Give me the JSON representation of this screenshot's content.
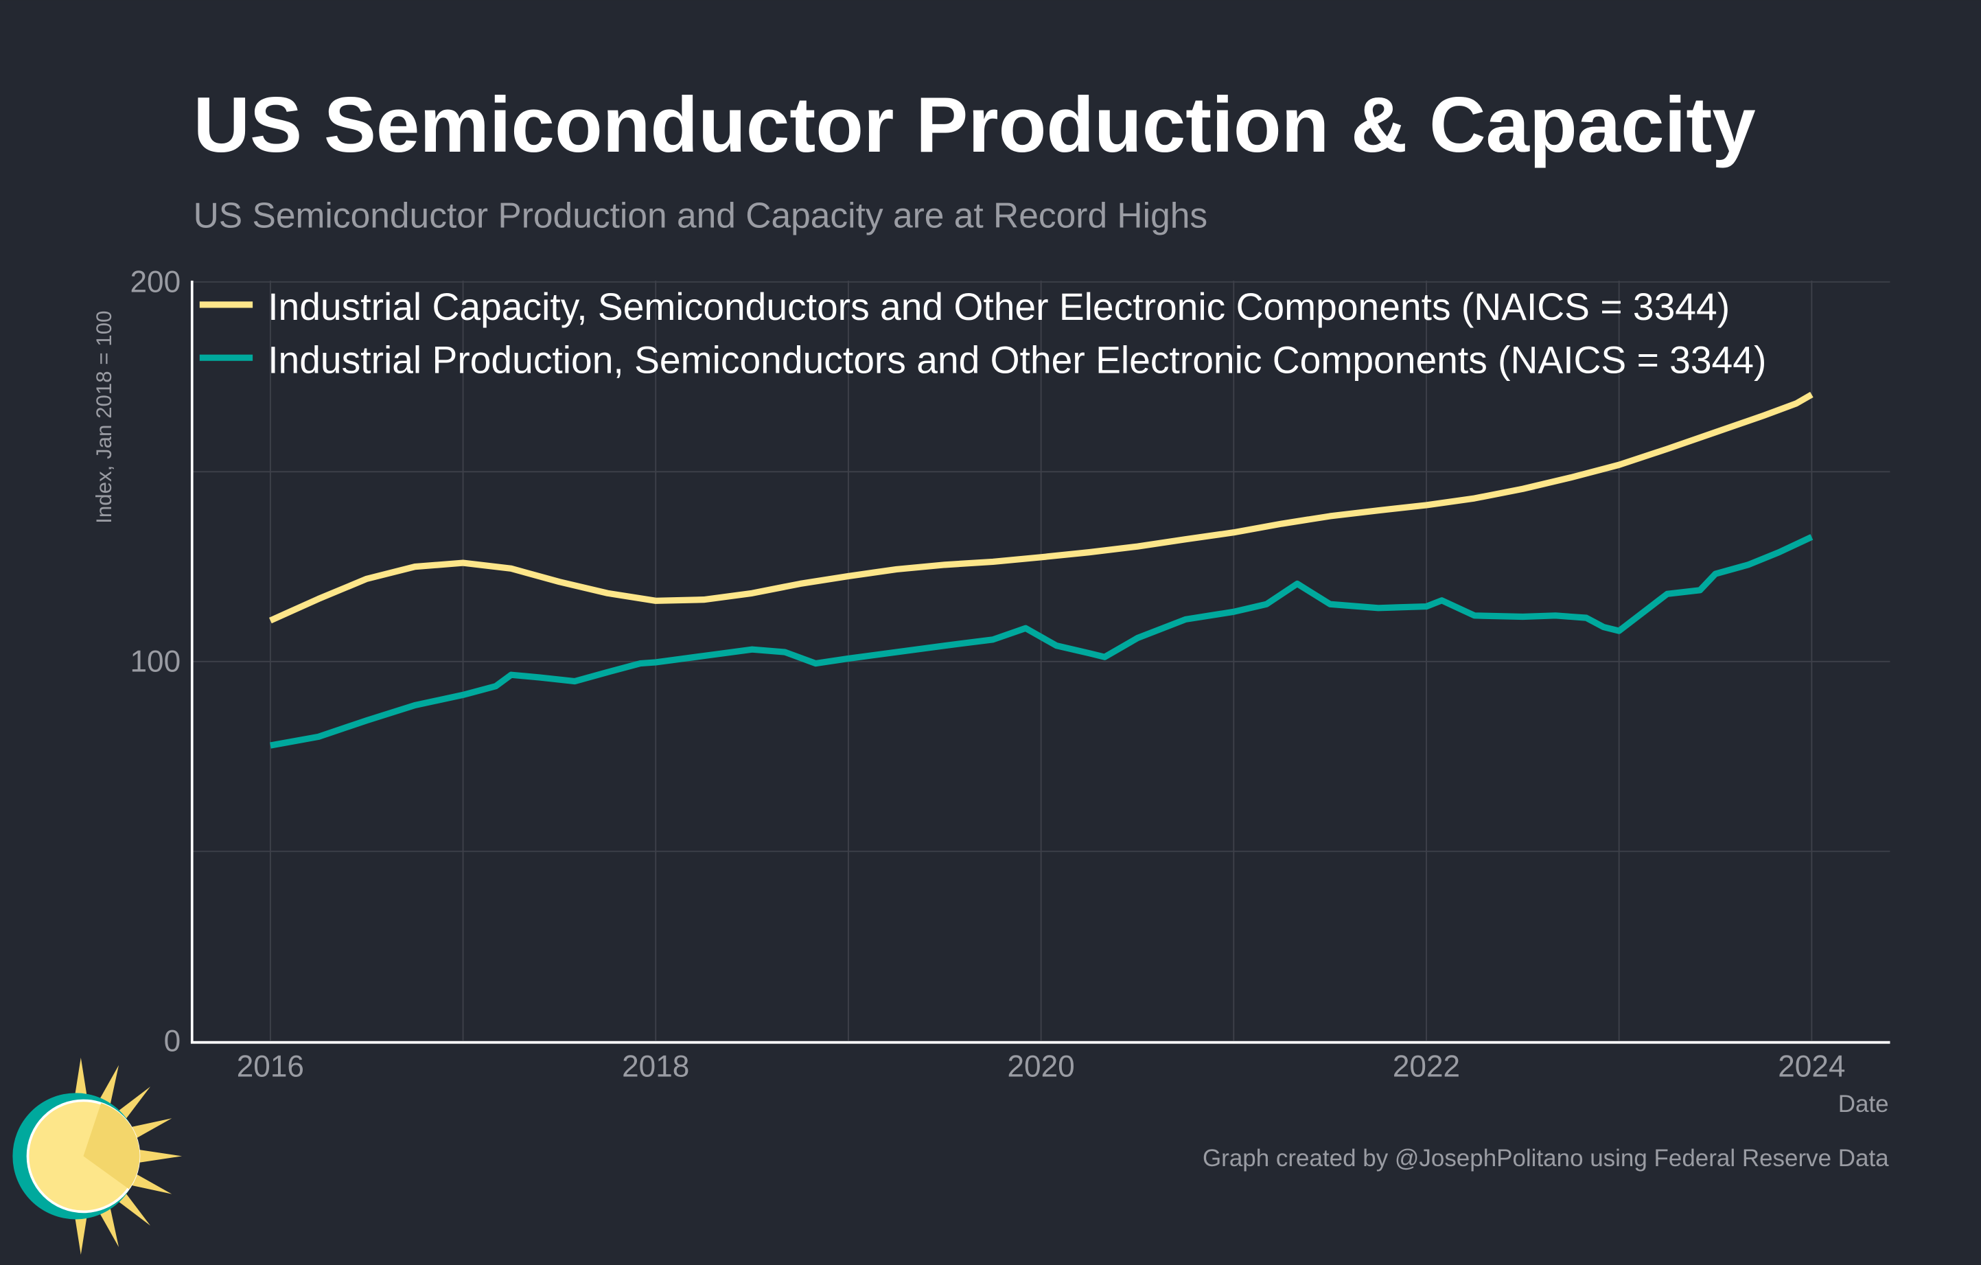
{
  "chart_data": {
    "type": "line",
    "title": "US Semiconductor Production & Capacity",
    "subtitle": "US Semiconductor Production and Capacity are at Record Highs",
    "xlabel": "Date",
    "ylabel": "Index, Jan 2018 = 100",
    "xlim": [
      2015.6,
      2024.4
    ],
    "ylim": [
      0,
      200
    ],
    "x_ticks": [
      "2016",
      "2018",
      "2020",
      "2022",
      "2024"
    ],
    "y_ticks": [
      "0",
      "100",
      "200"
    ],
    "grid": true,
    "legend_position": "top-left",
    "footer": "Graph created by @JosephPolitano using Federal Reserve Data",
    "colors": {
      "background": "#242831",
      "capacity": "#fde68a",
      "production": "#00a99d",
      "grid": "#3e414a"
    },
    "series": [
      {
        "name": "Industrial Capacity, Semiconductors and Other Electronic Components (NAICS = 3344)",
        "x": [
          2016.0,
          2016.25,
          2016.5,
          2016.75,
          2017.0,
          2017.25,
          2017.5,
          2017.75,
          2018.0,
          2018.25,
          2018.5,
          2018.75,
          2019.0,
          2019.25,
          2019.5,
          2019.75,
          2020.0,
          2020.25,
          2020.5,
          2020.75,
          2021.0,
          2021.25,
          2021.5,
          2021.75,
          2022.0,
          2022.25,
          2022.5,
          2022.75,
          2023.0,
          2023.25,
          2023.5,
          2023.75,
          2023.92,
          2024.0
        ],
        "values": [
          110.8,
          116.5,
          121.8,
          125.0,
          126.0,
          124.5,
          121.0,
          118.0,
          116.0,
          116.3,
          118.0,
          120.5,
          122.5,
          124.3,
          125.5,
          126.3,
          127.5,
          128.8,
          130.3,
          132.2,
          134.0,
          136.3,
          138.3,
          139.8,
          141.2,
          143.0,
          145.5,
          148.5,
          151.8,
          156.0,
          160.4,
          164.8,
          168.0,
          170.3
        ]
      },
      {
        "name": "Industrial Production, Semiconductors and Other Electronic Components (NAICS = 3344)",
        "x": [
          2016.0,
          2016.25,
          2016.5,
          2016.75,
          2017.0,
          2017.17,
          2017.25,
          2017.4,
          2017.58,
          2017.75,
          2017.92,
          2018.0,
          2018.25,
          2018.5,
          2018.67,
          2018.83,
          2019.0,
          2019.25,
          2019.5,
          2019.75,
          2019.92,
          2020.08,
          2020.25,
          2020.33,
          2020.5,
          2020.75,
          2021.0,
          2021.17,
          2021.33,
          2021.5,
          2021.75,
          2022.0,
          2022.08,
          2022.25,
          2022.5,
          2022.67,
          2022.83,
          2022.92,
          2023.0,
          2023.25,
          2023.42,
          2023.5,
          2023.67,
          2023.83,
          2024.0
        ],
        "values": [
          77.9,
          80.2,
          84.5,
          88.5,
          91.2,
          93.5,
          96.5,
          95.8,
          94.8,
          97.2,
          99.5,
          99.8,
          101.5,
          103.2,
          102.5,
          99.5,
          100.8,
          102.5,
          104.2,
          105.8,
          108.8,
          104.2,
          102.2,
          101.2,
          106.2,
          111.1,
          113.1,
          115.1,
          120.5,
          115.1,
          114.1,
          114.5,
          116.1,
          112.1,
          111.8,
          112.1,
          111.5,
          109.1,
          108.1,
          117.8,
          118.8,
          123.1,
          125.5,
          128.8,
          132.8
        ]
      }
    ]
  }
}
